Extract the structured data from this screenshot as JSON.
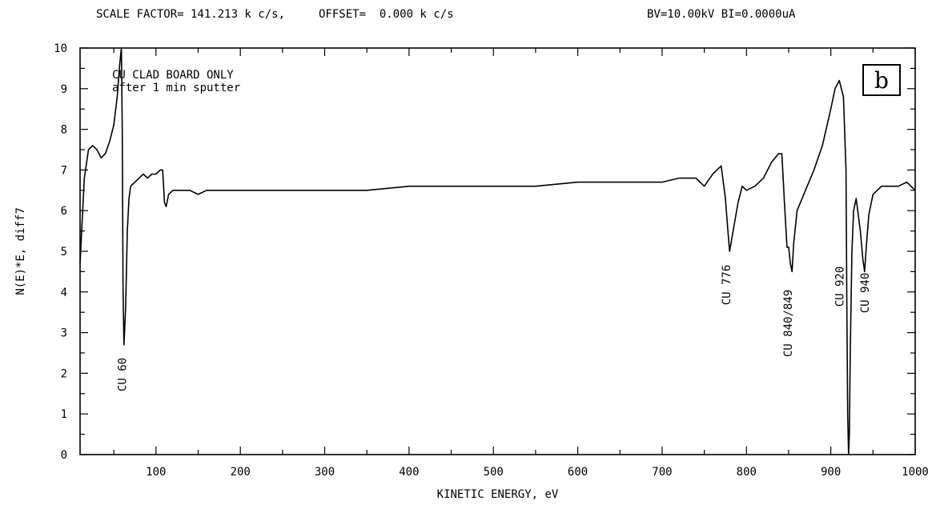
{
  "header": {
    "scale_text": "SCALE FACTOR= 141.213 k c/s,",
    "offset_text": "OFFSET=  0.000 k c/s",
    "beam_text": "BV=10.00kV BI=0.0000uA"
  },
  "panel_label": "b",
  "chart_data": {
    "type": "line",
    "title": "",
    "xlabel": "KINETIC ENERGY, eV",
    "ylabel": "N(E)*E, diff7",
    "xlim": [
      10,
      1000
    ],
    "ylim": [
      0,
      10
    ],
    "x_ticks": [
      100,
      200,
      300,
      400,
      500,
      600,
      700,
      800,
      900,
      1000
    ],
    "y_ticks": [
      0,
      1,
      2,
      3,
      4,
      5,
      6,
      7,
      8,
      9,
      10
    ],
    "grid": false,
    "annotations": {
      "sample_line1": "CU CLAD BOARD ONLY",
      "sample_line2": "after 1 min sputter"
    },
    "peak_labels": [
      {
        "text": "CU 60",
        "x": 60
      },
      {
        "text": "CU 776",
        "x": 776
      },
      {
        "text": "CU 840/849",
        "x": 849
      },
      {
        "text": "CU 920",
        "x": 920
      },
      {
        "text": "CU 940",
        "x": 940
      }
    ],
    "series": [
      {
        "x": [
          10,
          15,
          20,
          25,
          30,
          35,
          40,
          45,
          50,
          54,
          57,
          59,
          60,
          61,
          62,
          64,
          66,
          68,
          70,
          75,
          80,
          85,
          90,
          95,
          100,
          105,
          108,
          110,
          112,
          115,
          120,
          130,
          140,
          150,
          160,
          170,
          180,
          190,
          200,
          250,
          300,
          350,
          400,
          450,
          500,
          550,
          600,
          650,
          700,
          720,
          740,
          750,
          760,
          765,
          770,
          775,
          778,
          780,
          785,
          790,
          795,
          800,
          810,
          820,
          830,
          838,
          842,
          845,
          848,
          850,
          852,
          854,
          856,
          860,
          870,
          880,
          890,
          900,
          905,
          910,
          915,
          918,
          919,
          920,
          921,
          922,
          923,
          925,
          927,
          930,
          935,
          938,
          940,
          942,
          945,
          950,
          960,
          970,
          980,
          990,
          1000
        ],
        "y": [
          4.7,
          6.8,
          7.5,
          7.6,
          7.5,
          7.3,
          7.4,
          7.7,
          8.1,
          8.8,
          9.6,
          10.0,
          8.0,
          4.0,
          2.7,
          3.6,
          5.5,
          6.3,
          6.6,
          6.7,
          6.8,
          6.9,
          6.8,
          6.9,
          6.9,
          7.0,
          7.0,
          6.2,
          6.1,
          6.4,
          6.5,
          6.5,
          6.5,
          6.4,
          6.5,
          6.5,
          6.5,
          6.5,
          6.5,
          6.5,
          6.5,
          6.5,
          6.6,
          6.6,
          6.6,
          6.6,
          6.7,
          6.7,
          6.7,
          6.8,
          6.8,
          6.6,
          6.9,
          7.0,
          7.1,
          6.3,
          5.5,
          5.0,
          5.6,
          6.2,
          6.6,
          6.5,
          6.6,
          6.8,
          7.2,
          7.4,
          7.4,
          6.2,
          5.1,
          5.1,
          4.7,
          4.5,
          5.2,
          6.0,
          6.5,
          7.0,
          7.6,
          8.5,
          9.0,
          9.2,
          8.8,
          7.0,
          3.5,
          1.0,
          0.0,
          0.5,
          2.5,
          5.0,
          6.0,
          6.3,
          5.5,
          4.8,
          4.5,
          5.1,
          5.9,
          6.4,
          6.6,
          6.6,
          6.6,
          6.7,
          6.5
        ]
      }
    ]
  }
}
